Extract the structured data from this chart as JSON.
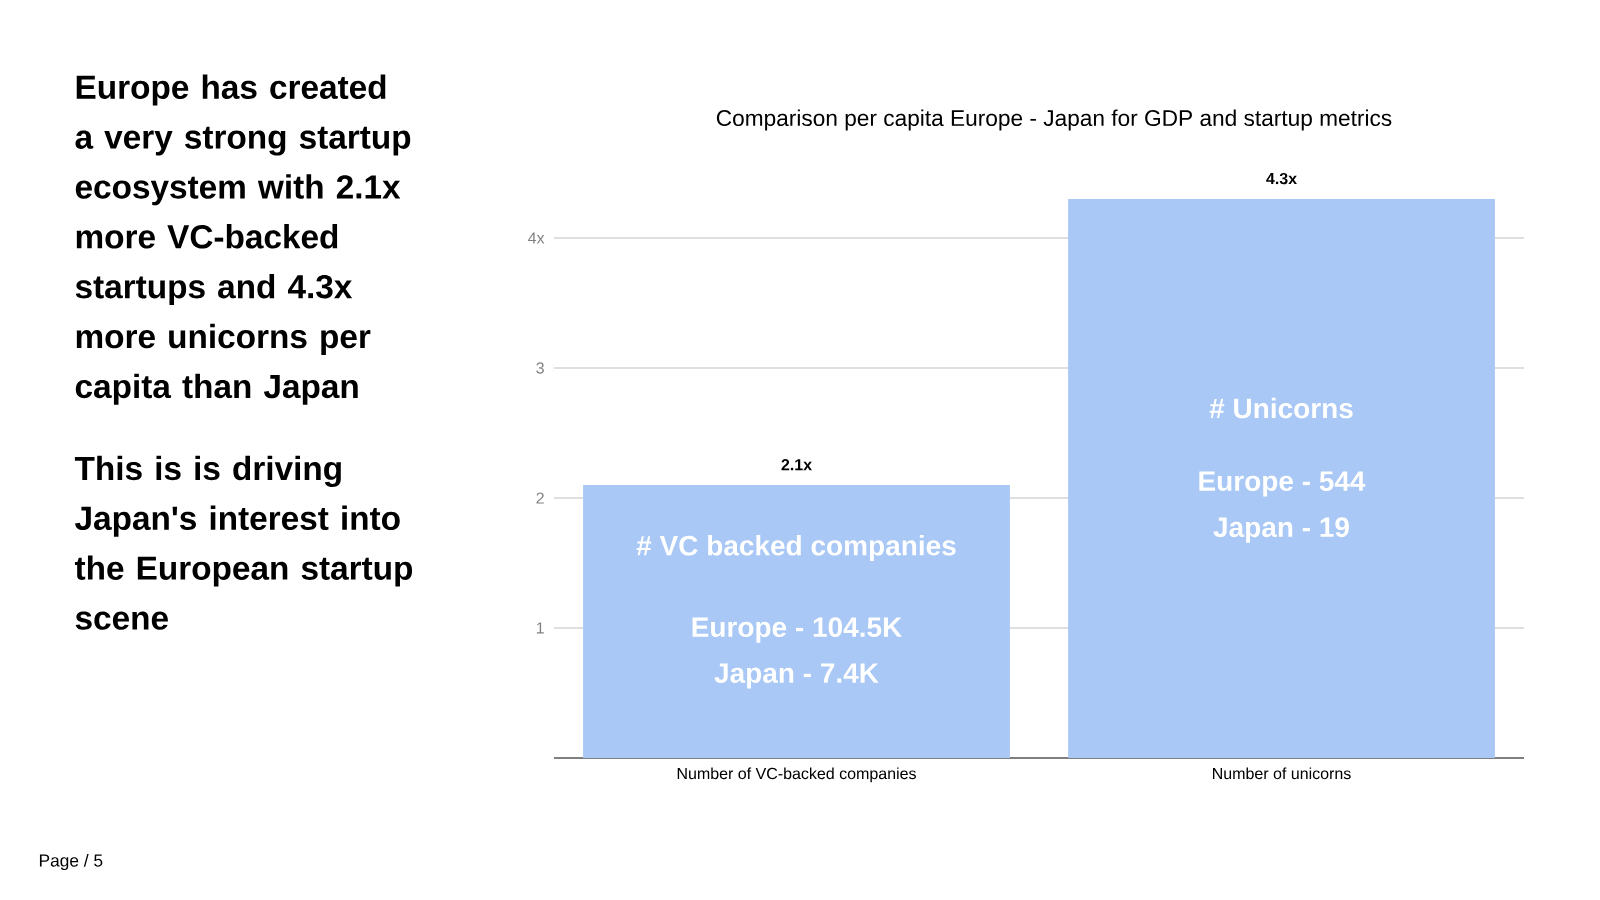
{
  "chart_data": {
    "type": "bar",
    "title": "Comparison per capita Europe - Japan for GDP and startup metrics",
    "categories": [
      "Number of VC-backed companies",
      "Number of unicorns"
    ],
    "values": [
      2.1,
      4.3
    ],
    "value_labels": [
      "2.1x",
      "4.3x"
    ],
    "color": "#a9c8f5",
    "ylim": [
      0,
      4.3
    ],
    "yticks": [
      1,
      2,
      3,
      {
        "value": 4,
        "label": "4x"
      }
    ],
    "grid": "y",
    "annotations": [
      "Europe has created a very strong startup ecosystem with 2.1x more VC-backed startups and 4.3x more unicorns per capita than Japan",
      "This is is driving Japan's interest into the European startup scene",
      "Page / 5",
      "# VC backed companies",
      "Europe - 104.5K",
      "Japan - 7.4K",
      "# Unicorns",
      "Europe - 544",
      "Japan - 19"
    ]
  }
}
